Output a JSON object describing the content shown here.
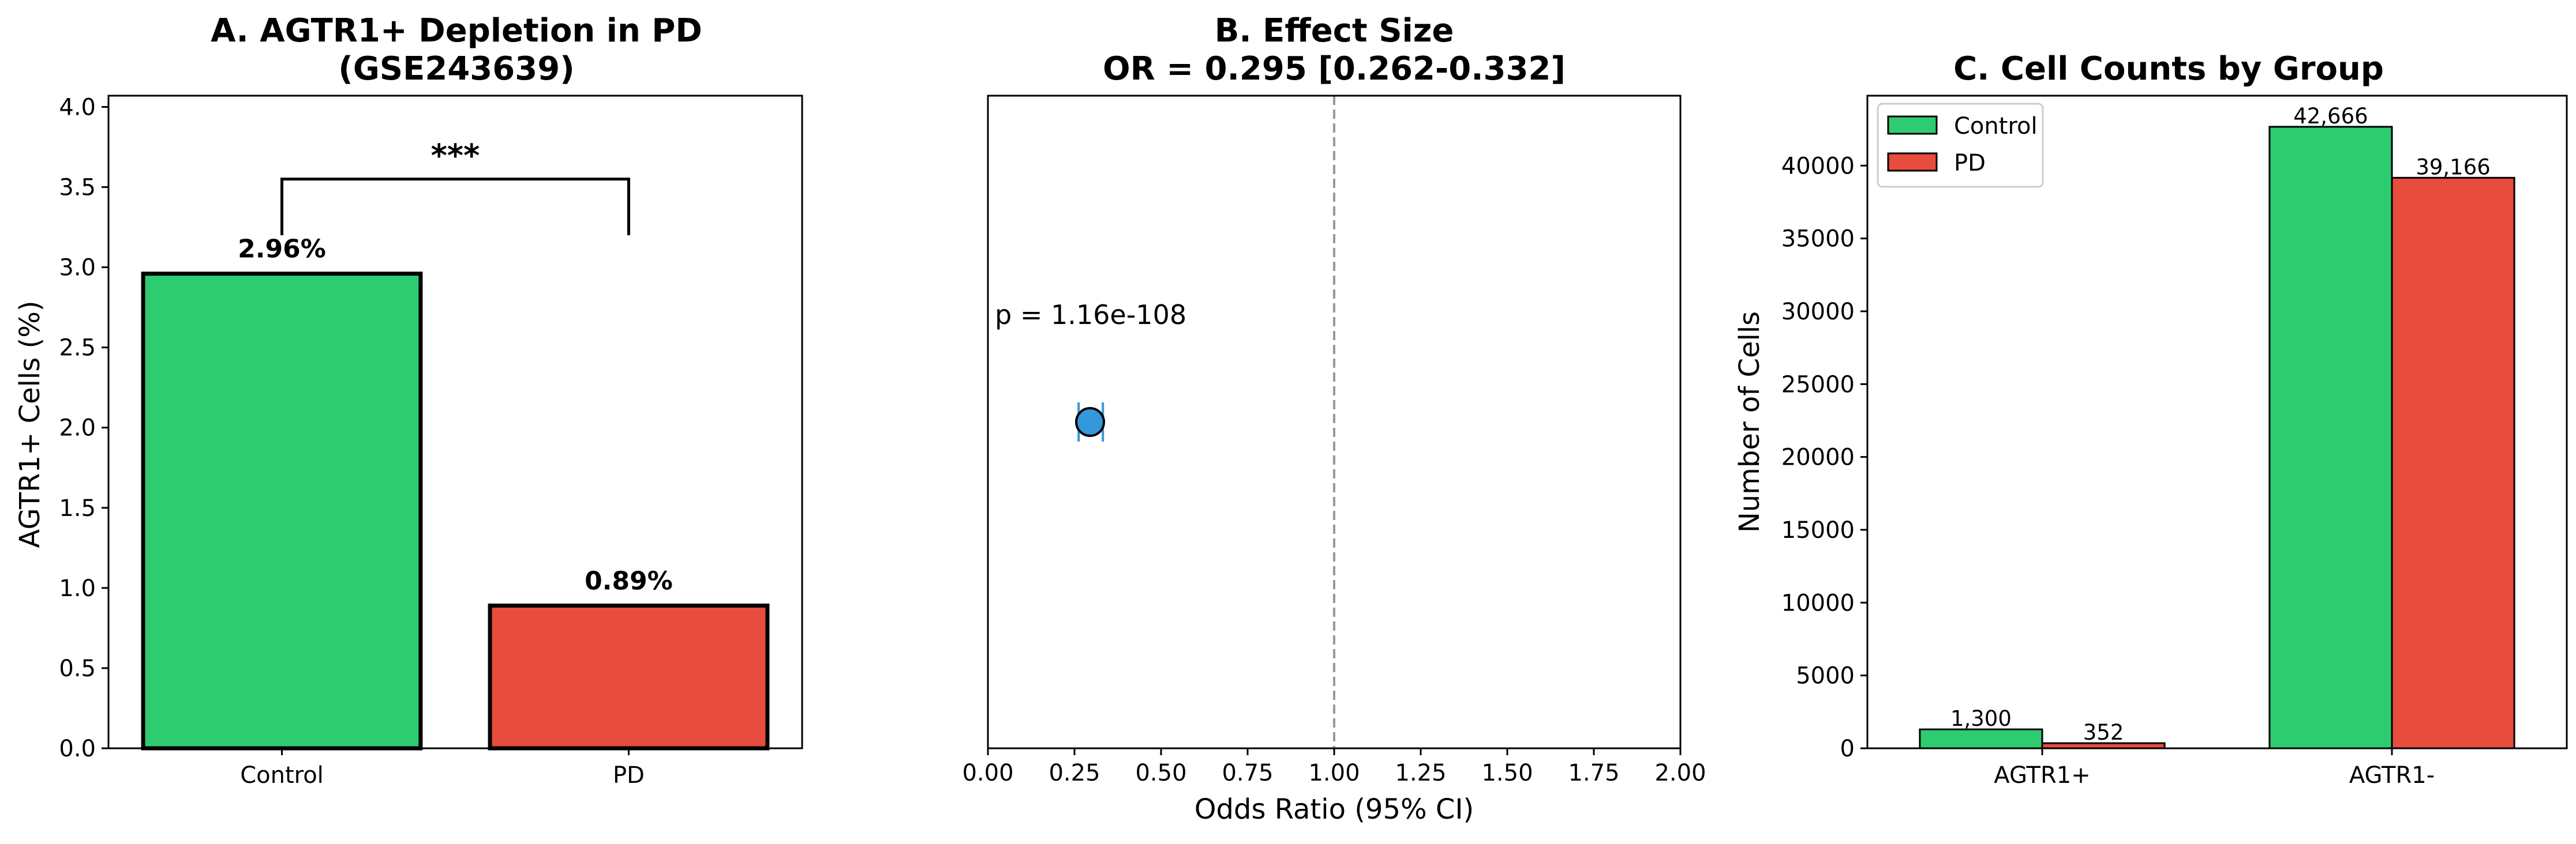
{
  "colors": {
    "control": "#2ecc71",
    "pd": "#e74c3c",
    "point": "#3498db",
    "refline": "#999999"
  },
  "chart_data": [
    {
      "type": "bar",
      "title_line1": "A. AGTR1+ Depletion in PD",
      "title_line2": "(GSE243639)",
      "xlabel": "",
      "ylabel": "AGTR1+ Cells (%)",
      "categories": [
        "Control",
        "PD"
      ],
      "values": [
        2.96,
        0.89
      ],
      "value_labels": [
        "2.96%",
        "0.89%"
      ],
      "ylim": [
        0,
        4.07
      ],
      "yticks": [
        0.0,
        0.5,
        1.0,
        1.5,
        2.0,
        2.5,
        3.0,
        3.5,
        4.0
      ],
      "ytick_labels": [
        "0.0",
        "0.5",
        "1.0",
        "1.5",
        "2.0",
        "2.5",
        "3.0",
        "3.5",
        "4.0"
      ],
      "significance": {
        "label": "***",
        "bracket_y": 3.55,
        "left_end_y": 3.2,
        "right_end_y": 3.2
      },
      "grid": false
    },
    {
      "type": "scatter",
      "title_line1": "B. Effect Size",
      "title_line2": "OR = 0.295 [0.262-0.332]",
      "xlabel": "Odds Ratio (95% CI)",
      "ylabel": "",
      "point": {
        "x": 0.295,
        "ci_low": 0.262,
        "ci_high": 0.332,
        "y_fraction": 0.5
      },
      "reference_line_x": 1.0,
      "xlim": [
        0,
        2
      ],
      "xticks": [
        0,
        0.25,
        0.5,
        0.75,
        1.0,
        1.25,
        1.5,
        1.75,
        2.0
      ],
      "xtick_labels": [
        "0.00",
        "0.25",
        "0.50",
        "0.75",
        "1.00",
        "1.25",
        "1.50",
        "1.75",
        "2.00"
      ],
      "annotation": "p = 1.16e-108",
      "grid": false
    },
    {
      "type": "bar",
      "title_line1": "C. Cell Counts by Group",
      "xlabel": "",
      "ylabel": "Number of Cells",
      "categories": [
        "AGTR1+",
        "AGTR1-"
      ],
      "series": [
        {
          "name": "Control",
          "values": [
            1300,
            42666
          ],
          "labels": [
            "1,300",
            "42,666"
          ]
        },
        {
          "name": "PD",
          "values": [
            352,
            39166
          ],
          "labels": [
            "352",
            "39,166"
          ]
        }
      ],
      "ylim": [
        0,
        44800
      ],
      "yticks": [
        0,
        5000,
        10000,
        15000,
        20000,
        25000,
        30000,
        35000,
        40000
      ],
      "ytick_labels": [
        "0",
        "5000",
        "10000",
        "15000",
        "20000",
        "25000",
        "30000",
        "35000",
        "40000"
      ],
      "legend": "top-left",
      "grid": false
    }
  ]
}
